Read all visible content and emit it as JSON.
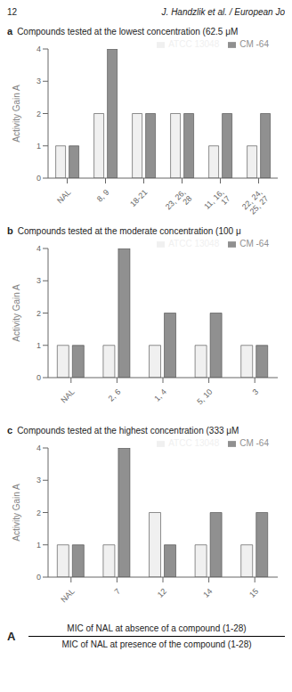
{
  "chart_data": [
    {
      "type": "bar",
      "title": "a",
      "subtitle": "Compounds tested at the lowest concentration (62.5 μM",
      "categories": [
        "NAL",
        "8, 9",
        "18-21",
        "23, 26,\n28",
        "11, 16,\n17",
        "22, 24,\n25, 27"
      ],
      "series": [
        {
          "name": "ATCC 13048",
          "color": "#f0f0f0",
          "values": [
            1,
            2,
            2,
            2,
            1,
            1
          ]
        },
        {
          "name": "CM -64",
          "color": "#909090",
          "values": [
            1,
            4,
            2,
            2,
            2,
            2
          ]
        }
      ],
      "y_label": "Activity Gain A",
      "ylim": [
        0,
        4
      ],
      "yticks": [
        0,
        1,
        2,
        3,
        4
      ],
      "legend": "upper right",
      "grid": false
    },
    {
      "type": "bar",
      "title": "b",
      "subtitle": "Compounds tested at the moderate concentration (100 μ",
      "categories": [
        "NAL",
        "2, 6",
        "1, 4",
        "5, 10",
        "3"
      ],
      "series": [
        {
          "name": "ATCC 13048",
          "color": "#f0f0f0",
          "values": [
            1,
            1,
            1,
            1,
            1
          ]
        },
        {
          "name": "CM -64",
          "color": "#909090",
          "values": [
            1,
            4,
            2,
            2,
            1
          ]
        }
      ],
      "y_label": "Activity Gain A",
      "ylim": [
        0,
        4
      ],
      "yticks": [
        0,
        1,
        2,
        3,
        4
      ],
      "legend": "upper right",
      "grid": false
    },
    {
      "type": "bar",
      "title": "c",
      "subtitle": "Compounds tested at the highest concentration (333 μM",
      "categories": [
        "NAL",
        "7",
        "12",
        "14",
        "15"
      ],
      "series": [
        {
          "name": "ATCC 13048",
          "color": "#f0f0f0",
          "values": [
            1,
            1,
            2,
            1,
            1
          ]
        },
        {
          "name": "CM -64",
          "color": "#909090",
          "values": [
            1,
            4,
            1,
            2,
            2
          ]
        }
      ],
      "y_label": "Activity Gain A",
      "ylim": [
        0,
        4
      ],
      "yticks": [
        0,
        1,
        2,
        3,
        4
      ],
      "legend": "upper right",
      "grid": false
    }
  ],
  "annotations": [
    "12",
    "J. Handzlik et al. / European Jo",
    "A",
    "MIC of NAL at absence of a compound (1-28)",
    "MIC of NAL at presence of the compound (1-28)"
  ]
}
